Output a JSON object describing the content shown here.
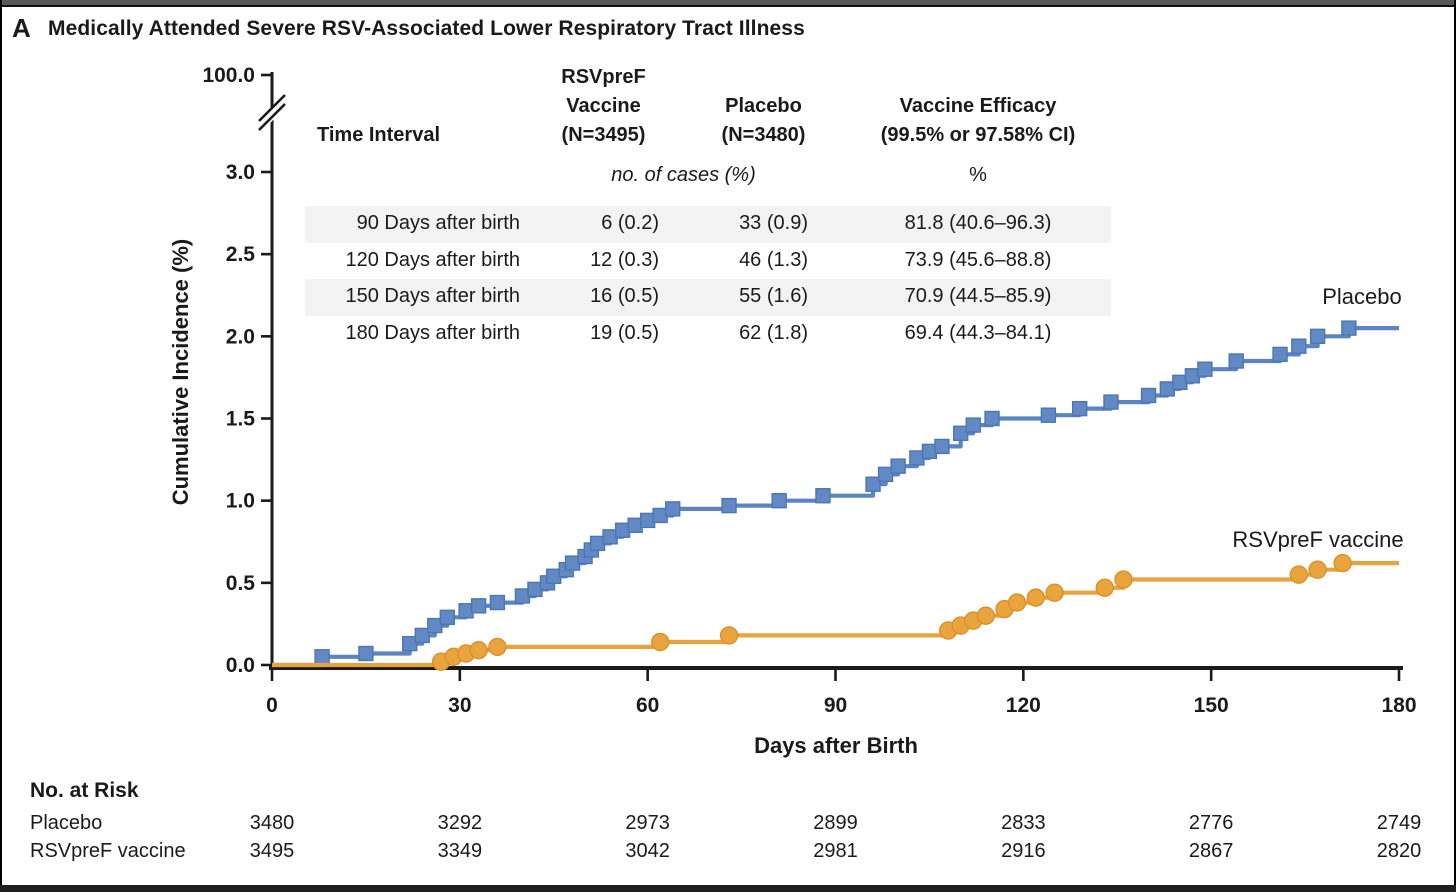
{
  "panel": {
    "label": "A",
    "title": "Medically Attended Severe RSV-Associated Lower Respiratory Tract Illness"
  },
  "efficacy_table": {
    "header": {
      "time_interval": "Time Interval",
      "vaccine_lines": [
        "RSVpreF",
        "Vaccine",
        "(N=3495)"
      ],
      "placebo_lines": [
        "Placebo",
        "(N=3480)"
      ],
      "efficacy_lines": [
        "Vaccine Efficacy",
        "(99.5% or 97.58% CI)"
      ]
    },
    "subheader": {
      "cases": "no. of cases (%)",
      "efficacy": "%"
    },
    "rows": [
      {
        "interval": "90 Days after birth",
        "vaccine": "6 (0.2)",
        "placebo": "33 (0.9)",
        "efficacy": "81.8 (40.6–96.3)",
        "shaded": true
      },
      {
        "interval": "120 Days after birth",
        "vaccine": "12 (0.3)",
        "placebo": "46 (1.3)",
        "efficacy": "73.9 (45.6–88.8)",
        "shaded": false
      },
      {
        "interval": "150 Days after birth",
        "vaccine": "16 (0.5)",
        "placebo": "55 (1.6)",
        "efficacy": "70.9 (44.5–85.9)",
        "shaded": true
      },
      {
        "interval": "180 Days after birth",
        "vaccine": "19 (0.5)",
        "placebo": "62 (1.8)",
        "efficacy": "69.4 (44.3–84.1)",
        "shaded": false
      }
    ]
  },
  "chart_data": {
    "type": "line",
    "subtype": "kaplan-meier-step",
    "title": "Medically Attended Severe RSV-Associated Lower Respiratory Tract Illness",
    "xlabel": "Days after Birth",
    "ylabel": "Cumulative Incidence (%)",
    "xlim": [
      0,
      180
    ],
    "x_ticks": [
      0,
      30,
      60,
      90,
      120,
      150,
      180
    ],
    "ylim_linear": [
      0,
      3.0
    ],
    "y_ticks": [
      0.0,
      0.5,
      1.0,
      1.5,
      2.0,
      2.5,
      3.0
    ],
    "y_tick_labels": [
      "0.0",
      "0.5",
      "1.0",
      "1.5",
      "2.0",
      "2.5",
      "3.0"
    ],
    "y_axis_break": true,
    "y_top_tick_label": "100.0",
    "grid": false,
    "legend_position": "curve-end-labels",
    "series": [
      {
        "name": "Placebo",
        "color": "#5b84c0",
        "marker": "square",
        "marker_fill": "#6289c3",
        "marker_stroke": "#4a77b3",
        "points": [
          [
            0,
            0
          ],
          [
            8,
            0.05
          ],
          [
            15,
            0.07
          ],
          [
            22,
            0.13
          ],
          [
            24,
            0.18
          ],
          [
            26,
            0.24
          ],
          [
            28,
            0.29
          ],
          [
            31,
            0.33
          ],
          [
            33,
            0.36
          ],
          [
            36,
            0.38
          ],
          [
            40,
            0.42
          ],
          [
            42,
            0.46
          ],
          [
            44,
            0.5
          ],
          [
            45,
            0.54
          ],
          [
            47,
            0.58
          ],
          [
            48,
            0.62
          ],
          [
            50,
            0.66
          ],
          [
            51,
            0.7
          ],
          [
            52,
            0.74
          ],
          [
            54,
            0.78
          ],
          [
            56,
            0.82
          ],
          [
            58,
            0.85
          ],
          [
            60,
            0.88
          ],
          [
            62,
            0.91
          ],
          [
            64,
            0.95
          ],
          [
            73,
            0.97
          ],
          [
            81,
            1.0
          ],
          [
            88,
            1.03
          ],
          [
            96,
            1.1
          ],
          [
            98,
            1.16
          ],
          [
            100,
            1.21
          ],
          [
            103,
            1.26
          ],
          [
            105,
            1.3
          ],
          [
            107,
            1.33
          ],
          [
            110,
            1.41
          ],
          [
            112,
            1.46
          ],
          [
            115,
            1.5
          ],
          [
            124,
            1.52
          ],
          [
            129,
            1.56
          ],
          [
            134,
            1.6
          ],
          [
            140,
            1.64
          ],
          [
            143,
            1.68
          ],
          [
            145,
            1.72
          ],
          [
            147,
            1.76
          ],
          [
            149,
            1.8
          ],
          [
            154,
            1.85
          ],
          [
            161,
            1.89
          ],
          [
            164,
            1.94
          ],
          [
            167,
            2.0
          ],
          [
            172,
            2.05
          ],
          [
            180,
            2.05
          ]
        ]
      },
      {
        "name": "RSVpreF vaccine",
        "color": "#e8a33d",
        "marker": "circle",
        "marker_fill": "#e9a43e",
        "marker_stroke": "#d9912b",
        "points": [
          [
            0,
            0
          ],
          [
            27,
            0.02
          ],
          [
            29,
            0.05
          ],
          [
            31,
            0.07
          ],
          [
            33,
            0.09
          ],
          [
            36,
            0.11
          ],
          [
            62,
            0.14
          ],
          [
            73,
            0.18
          ],
          [
            108,
            0.21
          ],
          [
            110,
            0.24
          ],
          [
            112,
            0.27
          ],
          [
            114,
            0.3
          ],
          [
            117,
            0.34
          ],
          [
            119,
            0.38
          ],
          [
            122,
            0.41
          ],
          [
            125,
            0.44
          ],
          [
            133,
            0.47
          ],
          [
            136,
            0.52
          ],
          [
            164,
            0.55
          ],
          [
            167,
            0.58
          ],
          [
            171,
            0.62
          ],
          [
            180,
            0.62
          ]
        ]
      }
    ]
  },
  "risk_table": {
    "title": "No. at Risk",
    "days": [
      0,
      30,
      60,
      90,
      120,
      150,
      180
    ],
    "rows": [
      {
        "label": "Placebo",
        "values": [
          "3480",
          "3292",
          "2973",
          "2899",
          "2833",
          "2776",
          "2749"
        ]
      },
      {
        "label": "RSVpreF vaccine",
        "values": [
          "3495",
          "3349",
          "3042",
          "2981",
          "2916",
          "2867",
          "2820"
        ]
      }
    ]
  }
}
